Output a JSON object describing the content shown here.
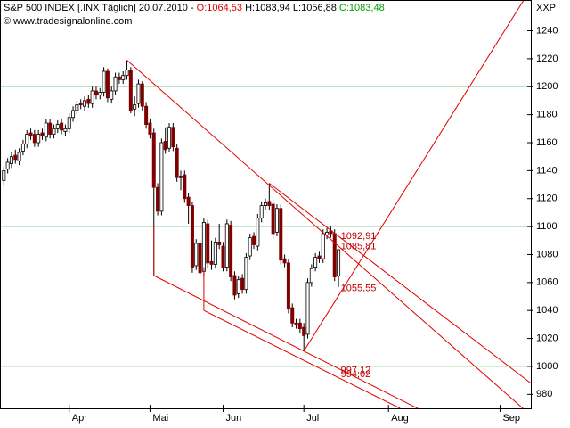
{
  "chart_data": {
    "type": "candlestick",
    "title": "S&P 500 INDEX [.INX  Täglich] 20.07.2010 - ",
    "quote": [
      {
        "text": "O:1064,53",
        "color": "#e00000"
      },
      {
        "text": " H:1083,94",
        "color": "#000000"
      },
      {
        "text": " L:1056,88",
        "color": "#000000"
      },
      {
        "text": " C:1083,48",
        "color": "#00a000"
      }
    ],
    "subtitle": "© www.tradesignalonline.com",
    "corner_label": "XXP",
    "up_color": "#ffffff",
    "down_color": "#800000",
    "outline_color": "#000000",
    "x": [
      1,
      2,
      3,
      4,
      5,
      6,
      7,
      8,
      9,
      10,
      11,
      12,
      13,
      14,
      15,
      16,
      17,
      18,
      19,
      20,
      21,
      22,
      23,
      24,
      25,
      26,
      27,
      28,
      29,
      30,
      31,
      32,
      33,
      34,
      35,
      36,
      37,
      38,
      39,
      40,
      41,
      42,
      43,
      44,
      45,
      46,
      47,
      48,
      49,
      50,
      51,
      52,
      53,
      54,
      55,
      56,
      57,
      58,
      59,
      60,
      61,
      62,
      63,
      64,
      65,
      66,
      67,
      68,
      69,
      70,
      71,
      72,
      73,
      74,
      75,
      76,
      77,
      78,
      79,
      80,
      81,
      82,
      83,
      84,
      85,
      86,
      87,
      88
    ],
    "open": [
      1133,
      1141,
      1145,
      1151,
      1147,
      1154,
      1159,
      1167,
      1166,
      1160,
      1167,
      1164,
      1174,
      1166,
      1170,
      1174,
      1168,
      1170,
      1178,
      1183,
      1188,
      1186,
      1191,
      1188,
      1197,
      1194,
      1196,
      1211,
      1191,
      1197,
      1207,
      1205,
      1208,
      1212,
      1184,
      1188,
      1202,
      1186,
      1174,
      1167,
      1128,
      1111,
      1161,
      1156,
      1171,
      1156,
      1135,
      1137,
      1121,
      1115,
      1072,
      1088,
      1068,
      1102,
      1075,
      1073,
      1089,
      1086,
      1071,
      1101,
      1065,
      1052,
      1063,
      1055,
      1079,
      1093,
      1086,
      1106,
      1115,
      1118,
      1116,
      1096,
      1113,
      1077,
      1074,
      1042,
      1031,
      1031,
      1028,
      1023,
      1060,
      1071,
      1079,
      1077,
      1094,
      1097,
      1095,
      1064.53
    ],
    "high": [
      1143,
      1149,
      1153,
      1155,
      1156,
      1162,
      1169,
      1170,
      1169,
      1169,
      1170,
      1177,
      1177,
      1173,
      1176,
      1177,
      1173,
      1181,
      1186,
      1190,
      1191,
      1193,
      1194,
      1200,
      1200,
      1199,
      1214,
      1213,
      1200,
      1210,
      1210,
      1211,
      1219,
      1214,
      1193,
      1205,
      1204,
      1189,
      1177,
      1170,
      1131,
      1163,
      1171,
      1174,
      1174,
      1159,
      1140,
      1140,
      1124,
      1118,
      1091,
      1091,
      1106,
      1105,
      1090,
      1092,
      1102,
      1089,
      1105,
      1104,
      1068,
      1065,
      1066,
      1081,
      1095,
      1096,
      1109,
      1118,
      1120,
      1131,
      1119,
      1116,
      1116,
      1080,
      1077,
      1045,
      1034,
      1034,
      1031,
      1063,
      1073,
      1081,
      1082,
      1098,
      1099,
      1100,
      1098,
      1083.94
    ],
    "low": [
      1129,
      1138,
      1142,
      1145,
      1144,
      1151,
      1156,
      1162,
      1157,
      1157,
      1162,
      1161,
      1163,
      1163,
      1167,
      1166,
      1165,
      1167,
      1175,
      1180,
      1184,
      1183,
      1185,
      1185,
      1191,
      1191,
      1193,
      1189,
      1188,
      1194,
      1202,
      1202,
      1205,
      1181,
      1179,
      1185,
      1183,
      1170,
      1163,
      1065,
      1108,
      1108,
      1152,
      1153,
      1154,
      1132,
      1126,
      1117,
      1102,
      1067,
      1069,
      1064,
      1065,
      1070,
      1069,
      1070,
      1084,
      1068,
      1068,
      1061,
      1048,
      1049,
      1052,
      1052,
      1076,
      1084,
      1083,
      1103,
      1112,
      1112,
      1092,
      1093,
      1073,
      1071,
      1038,
      1028,
      1027,
      1024,
      1011,
      1020,
      1057,
      1068,
      1074,
      1074,
      1091,
      1092,
      1061,
      1056.88
    ],
    "close": [
      1140,
      1146,
      1150,
      1148,
      1153,
      1159,
      1166,
      1165,
      1160,
      1166,
      1165,
      1174,
      1166,
      1170,
      1173,
      1169,
      1170,
      1178,
      1183,
      1187,
      1187,
      1190,
      1188,
      1197,
      1194,
      1196,
      1211,
      1192,
      1197,
      1207,
      1205,
      1208,
      1212,
      1183,
      1187,
      1202,
      1186,
      1173,
      1166,
      1128,
      1111,
      1160,
      1155,
      1171,
      1157,
      1135,
      1136,
      1120,
      1115,
      1071,
      1088,
      1067,
      1103,
      1074,
      1073,
      1089,
      1087,
      1071,
      1102,
      1064,
      1051,
      1062,
      1055,
      1078,
      1092,
      1087,
      1106,
      1115,
      1117,
      1115,
      1095,
      1113,
      1076,
      1074,
      1041,
      1031,
      1030,
      1027,
      1022,
      1060,
      1070,
      1078,
      1077,
      1095,
      1096,
      1095,
      1064,
      1083.48
    ],
    "trendline_color": "#e00000",
    "trendlines": [
      {
        "x": [
          33,
          138
        ],
        "y": [
          1219,
          965
        ]
      },
      {
        "x": [
          70,
          138
        ],
        "y": [
          1131,
          988
        ]
      },
      {
        "x": [
          40,
          110
        ],
        "y": [
          1065,
          968
        ]
      },
      {
        "x": [
          53,
          104
        ],
        "y": [
          1040,
          970
        ]
      },
      {
        "x": [
          40,
          40
        ],
        "y": [
          1065,
          1100
        ]
      },
      {
        "x": [
          53,
          53
        ],
        "y": [
          1040,
          1071
        ]
      },
      {
        "x": [
          79,
          138
        ],
        "y": [
          1011,
          1270
        ]
      }
    ],
    "annotations": [
      {
        "value": 1092.91,
        "label": "1092,91"
      },
      {
        "value": 1085.81,
        "label": "1085,81"
      },
      {
        "value": 1055.55,
        "label": "1055,55"
      },
      {
        "value": 997.12,
        "label": "997,12"
      },
      {
        "value": 994.02,
        "label": "994,02"
      }
    ],
    "annotation_x": 88.6,
    "xlim": [
      0,
      138
    ],
    "xticks": [
      {
        "value": 18,
        "label": "Apr"
      },
      {
        "value": 39,
        "label": "Mai"
      },
      {
        "value": 58,
        "label": "Jun"
      },
      {
        "value": 79,
        "label": "Jul"
      },
      {
        "value": 101,
        "label": "Aug"
      },
      {
        "value": 130,
        "label": "Sep"
      }
    ],
    "ylim": [
      970,
      1262
    ],
    "yticks": [
      980,
      1000,
      1020,
      1040,
      1060,
      1080,
      1100,
      1120,
      1140,
      1160,
      1180,
      1200,
      1220,
      1240
    ],
    "grid_values": [
      1000,
      1100,
      1200
    ],
    "grid_color": "#a8d8a8"
  }
}
